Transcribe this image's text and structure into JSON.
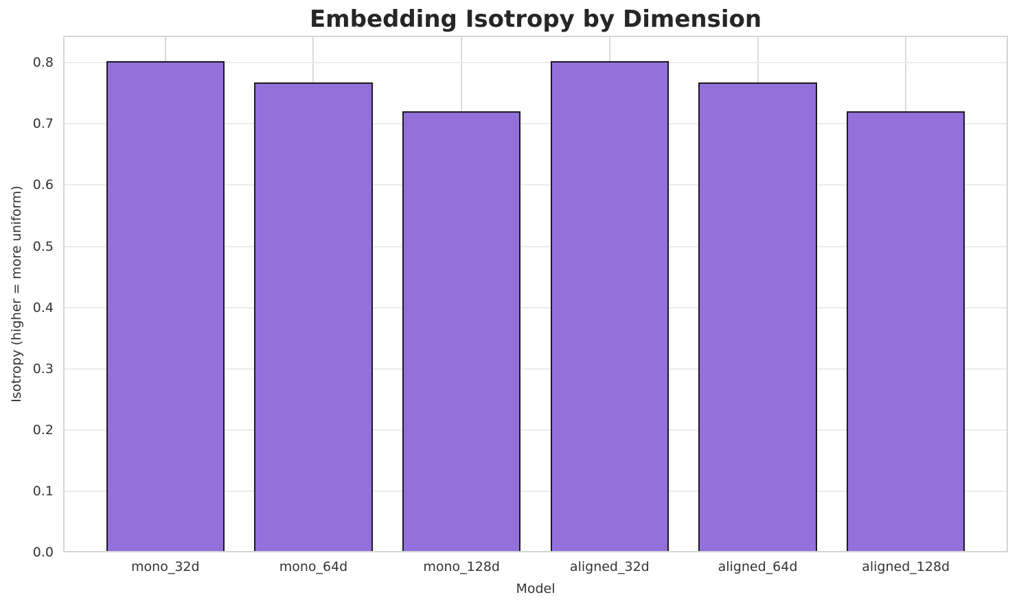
{
  "chart_data": {
    "type": "bar",
    "title": "Embedding Isotropy by Dimension",
    "xlabel": "Model",
    "ylabel": "Isotropy (higher = more uniform)",
    "categories": [
      "mono_32d",
      "mono_64d",
      "mono_128d",
      "aligned_32d",
      "aligned_64d",
      "aligned_128d"
    ],
    "values": [
      0.803,
      0.768,
      0.72,
      0.803,
      0.768,
      0.72
    ],
    "ylim": [
      0,
      0.844
    ],
    "yticks": [
      0.0,
      0.1,
      0.2,
      0.3,
      0.4,
      0.5,
      0.6,
      0.7,
      0.8
    ],
    "ytick_labels": [
      "0.0",
      "0.1",
      "0.2",
      "0.3",
      "0.4",
      "0.5",
      "0.6",
      "0.7",
      "0.8"
    ],
    "grid": true,
    "legend": false,
    "bar_width_fraction": 0.8,
    "colors": {
      "bar_fill": "#9370DB",
      "bar_edge": "#1a1a1a",
      "grid_horizontal": "#ebebeb",
      "grid_vertical": "#d9d9d9",
      "spine": "#d4d4d4",
      "text": "#333333",
      "title": "#262626",
      "background": "#ffffff"
    }
  }
}
